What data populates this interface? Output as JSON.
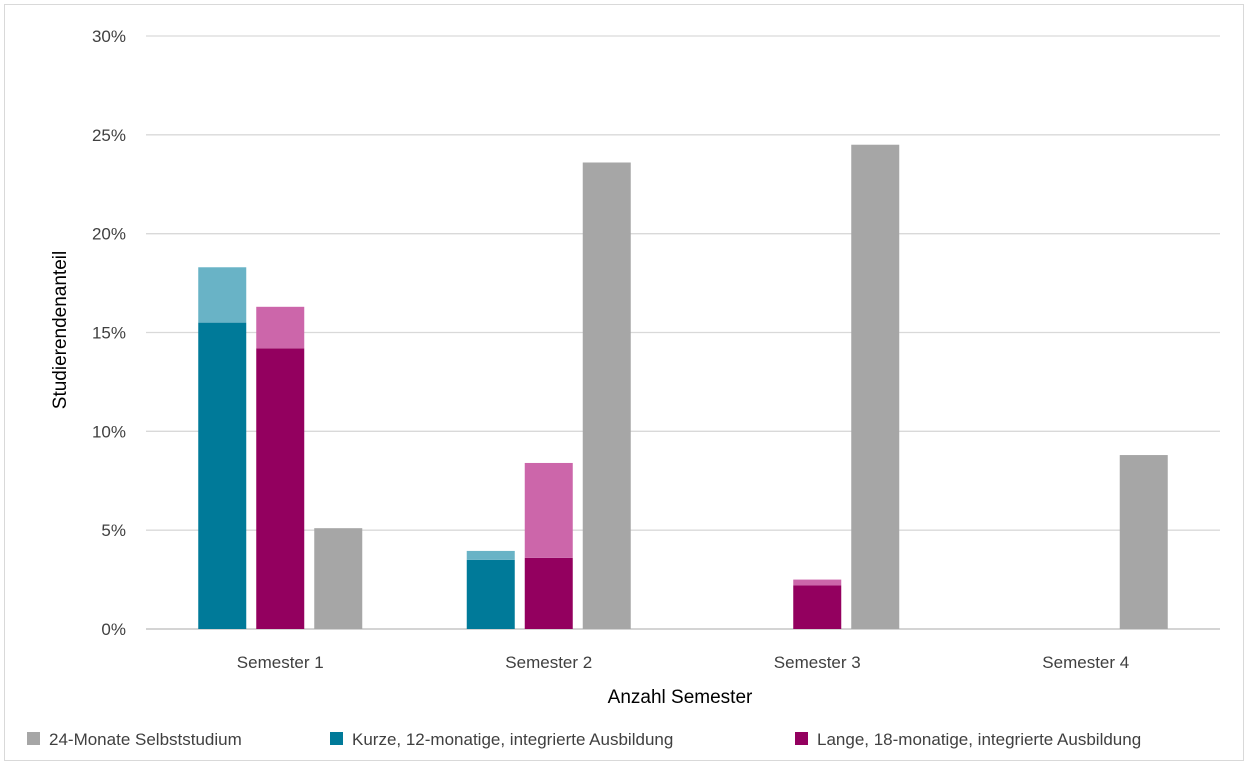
{
  "chart_data": {
    "type": "bar",
    "stacked_pairs": true,
    "categories": [
      "Semester 1",
      "Semester 2",
      "Semester 3",
      "Semester 4"
    ],
    "xlabel": "Anzahl Semester",
    "ylabel": "Studierendenanteil",
    "ylim": [
      0,
      30
    ],
    "yticks": [
      0,
      5,
      10,
      15,
      20,
      25,
      30
    ],
    "ytick_format": "%",
    "grid": true,
    "legend_position": "bottom",
    "series": [
      {
        "name": "Kurze, 12-monatige, integrierte Ausbildung",
        "color": "#007a99",
        "light_color": "#69b3c6",
        "base": [
          15.5,
          3.5,
          0,
          0
        ],
        "extra": [
          2.8,
          0.45,
          0,
          0
        ]
      },
      {
        "name": "Lange, 18-monatige, integrierte Ausbildung",
        "color": "#93005f",
        "light_color": "#cc66aa",
        "base": [
          14.2,
          3.6,
          2.2,
          0
        ],
        "extra": [
          2.1,
          4.8,
          0.3,
          0
        ]
      },
      {
        "name": "24-Monate Selbststudium",
        "color": "#a6a6a6",
        "light_color": "#a6a6a6",
        "base": [
          5.1,
          23.6,
          24.5,
          8.8
        ],
        "extra": [
          0,
          0,
          0,
          0
        ]
      }
    ],
    "legend_order": [
      2,
      0,
      1
    ]
  }
}
